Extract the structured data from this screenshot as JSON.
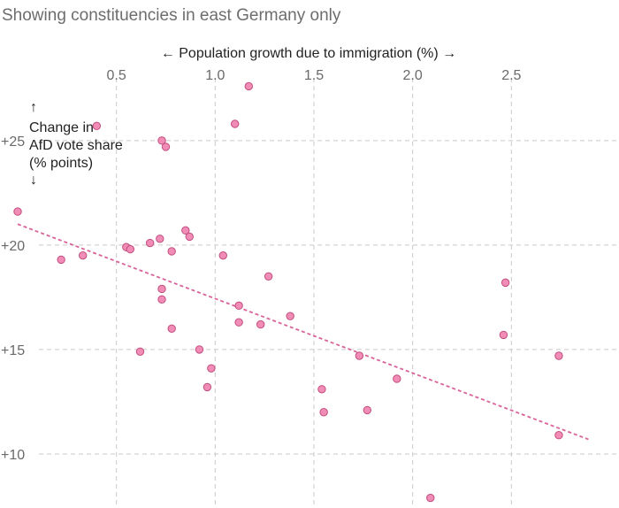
{
  "subtitle": "Showing constituencies in east Germany only",
  "colors": {
    "point_fill": "#f08cb5",
    "point_stroke": "#c24d7f",
    "trend": "#d9639a",
    "grid": "#c9c9c9"
  },
  "chart_data": {
    "type": "scatter",
    "title": "",
    "subtitle": "Showing constituencies in east Germany only",
    "xlabel": "← Population growth due to immigration (%) →",
    "ylabel_lines": [
      "↑",
      "Change in",
      "AfD vote share",
      "(% points)",
      "↓"
    ],
    "x_ticks": [
      0.5,
      1.0,
      1.5,
      2.0,
      2.5
    ],
    "x_tick_labels": [
      "0.5",
      "1.0",
      "1.5",
      "2.0",
      "2.5"
    ],
    "y_ticks": [
      10,
      15,
      20,
      25
    ],
    "y_tick_labels": [
      "+10",
      "+15",
      "+20",
      "+25"
    ],
    "xlim": [
      0.0,
      3.0
    ],
    "ylim": [
      7.5,
      28.0
    ],
    "grid": true,
    "points": [
      {
        "x": 0.0,
        "y": 21.6
      },
      {
        "x": 0.4,
        "y": 25.7
      },
      {
        "x": 0.22,
        "y": 19.3
      },
      {
        "x": 0.33,
        "y": 19.5
      },
      {
        "x": 0.55,
        "y": 19.9
      },
      {
        "x": 0.57,
        "y": 19.8
      },
      {
        "x": 0.67,
        "y": 20.1
      },
      {
        "x": 0.72,
        "y": 20.3
      },
      {
        "x": 0.73,
        "y": 25.0
      },
      {
        "x": 0.75,
        "y": 24.7
      },
      {
        "x": 0.73,
        "y": 17.9
      },
      {
        "x": 0.73,
        "y": 17.4
      },
      {
        "x": 0.62,
        "y": 14.9
      },
      {
        "x": 0.78,
        "y": 19.7
      },
      {
        "x": 0.78,
        "y": 16.0
      },
      {
        "x": 0.85,
        "y": 20.7
      },
      {
        "x": 0.87,
        "y": 20.4
      },
      {
        "x": 0.92,
        "y": 15.0
      },
      {
        "x": 0.96,
        "y": 13.2
      },
      {
        "x": 0.98,
        "y": 14.1
      },
      {
        "x": 1.04,
        "y": 19.5
      },
      {
        "x": 1.1,
        "y": 25.8
      },
      {
        "x": 1.17,
        "y": 27.6
      },
      {
        "x": 1.12,
        "y": 17.1
      },
      {
        "x": 1.12,
        "y": 16.3
      },
      {
        "x": 1.23,
        "y": 16.2
      },
      {
        "x": 1.27,
        "y": 18.5
      },
      {
        "x": 1.38,
        "y": 16.6
      },
      {
        "x": 1.54,
        "y": 13.1
      },
      {
        "x": 1.55,
        "y": 12.0
      },
      {
        "x": 1.73,
        "y": 14.7
      },
      {
        "x": 1.77,
        "y": 12.1
      },
      {
        "x": 1.92,
        "y": 13.6
      },
      {
        "x": 2.09,
        "y": 7.9
      },
      {
        "x": 2.46,
        "y": 15.7
      },
      {
        "x": 2.47,
        "y": 18.2
      },
      {
        "x": 2.74,
        "y": 14.7
      },
      {
        "x": 2.74,
        "y": 10.9
      }
    ],
    "trendline": [
      {
        "x": 0.0,
        "y": 21.0
      },
      {
        "x": 2.89,
        "y": 10.7
      }
    ]
  }
}
